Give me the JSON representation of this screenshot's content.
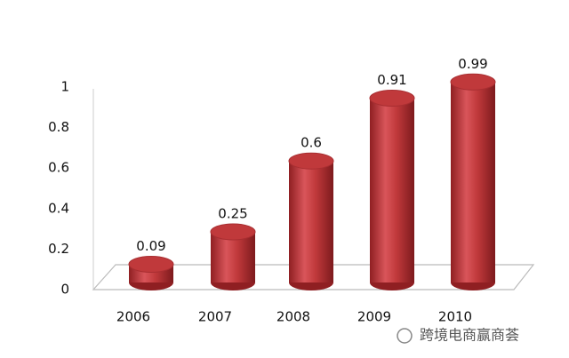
{
  "chart_data": {
    "type": "bar",
    "categories": [
      "2006",
      "2007",
      "2008",
      "2009",
      "2010"
    ],
    "values": [
      0.09,
      0.25,
      0.6,
      0.91,
      0.99
    ],
    "color": "#c0393b",
    "ylim": [
      0,
      1
    ],
    "yticks": [
      0,
      0.2,
      0.4,
      0.6,
      0.8,
      1
    ],
    "data_labels": true
  },
  "watermark": "跨境电商赢商荟"
}
